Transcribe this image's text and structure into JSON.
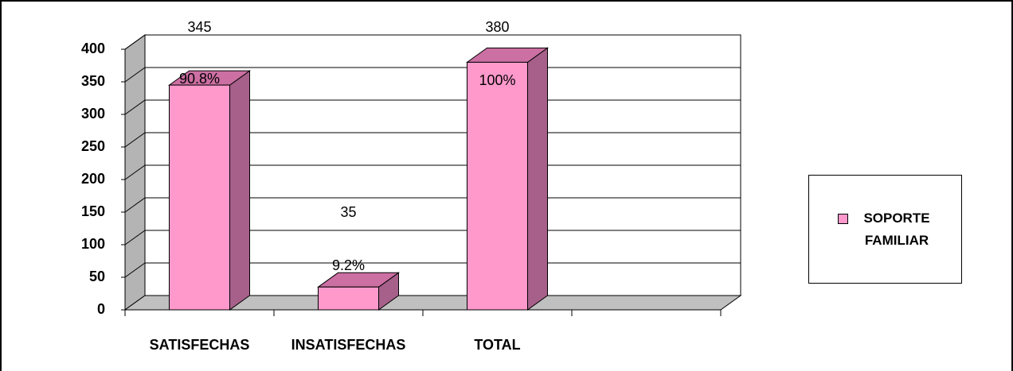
{
  "chart_data": {
    "type": "bar3d",
    "categories": [
      "SATISFECHAS",
      "INSATISFECHAS",
      "TOTAL",
      null
    ],
    "series": [
      {
        "name": "SOPORTE FAMILIAR",
        "color": "#ff99cc",
        "values": [
          345,
          35,
          380,
          null
        ]
      }
    ],
    "percent_labels": [
      "90.8%",
      "9.2%",
      "100%",
      null
    ],
    "ylim": [
      0,
      400
    ],
    "yticks": [
      0,
      50,
      100,
      150,
      200,
      250,
      300,
      350,
      400
    ],
    "grid": true,
    "legend": "right"
  }
}
